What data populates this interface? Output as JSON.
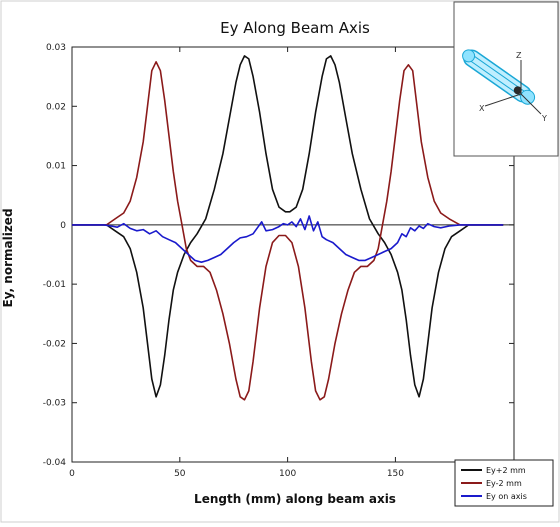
{
  "chart_data": {
    "type": "line",
    "title": "Ey Along Beam Axis",
    "xlabel": "Length (mm) along beam axis",
    "ylabel": "Ey, normalized",
    "xlim": [
      0,
      205
    ],
    "ylim": [
      -0.04,
      0.03
    ],
    "x_ticks": [
      0,
      50,
      100,
      150
    ],
    "x_tick_labels": [
      "0",
      "50",
      "100",
      "150"
    ],
    "y_ticks": [
      0.03,
      0.02,
      0.01,
      0,
      -0.01,
      -0.02,
      -0.03,
      -0.04
    ],
    "y_tick_labels": [
      "0.03",
      "0.02",
      "0.01",
      "0",
      "-0.01",
      "-0.02",
      "-0.03",
      "-0.04"
    ],
    "zero_line": true,
    "grid": false,
    "legend_position": "bottom-right",
    "series": [
      {
        "name": "Ey+2 mm",
        "color": "#111111",
        "points": [
          [
            0,
            0
          ],
          [
            12,
            0
          ],
          [
            16,
            0
          ],
          [
            20,
            -0.001
          ],
          [
            24,
            -0.002
          ],
          [
            27,
            -0.004
          ],
          [
            30,
            -0.008
          ],
          [
            33,
            -0.014
          ],
          [
            35,
            -0.02
          ],
          [
            37,
            -0.026
          ],
          [
            39,
            -0.029
          ],
          [
            41,
            -0.027
          ],
          [
            43,
            -0.022
          ],
          [
            45,
            -0.016
          ],
          [
            47,
            -0.011
          ],
          [
            49,
            -0.008
          ],
          [
            52,
            -0.005
          ],
          [
            55,
            -0.003
          ],
          [
            58,
            -0.0015
          ],
          [
            62,
            0.001
          ],
          [
            66,
            0.006
          ],
          [
            70,
            0.012
          ],
          [
            73,
            0.018
          ],
          [
            76,
            0.024
          ],
          [
            78,
            0.027
          ],
          [
            80,
            0.0285
          ],
          [
            82,
            0.028
          ],
          [
            84,
            0.025
          ],
          [
            87,
            0.019
          ],
          [
            90,
            0.012
          ],
          [
            93,
            0.006
          ],
          [
            96,
            0.003
          ],
          [
            99,
            0.0022
          ],
          [
            101,
            0.0022
          ],
          [
            104,
            0.003
          ],
          [
            107,
            0.006
          ],
          [
            110,
            0.012
          ],
          [
            113,
            0.019
          ],
          [
            116,
            0.025
          ],
          [
            118,
            0.028
          ],
          [
            120,
            0.0285
          ],
          [
            122,
            0.027
          ],
          [
            124,
            0.024
          ],
          [
            127,
            0.018
          ],
          [
            130,
            0.012
          ],
          [
            134,
            0.006
          ],
          [
            138,
            0.001
          ],
          [
            142,
            -0.0015
          ],
          [
            145,
            -0.003
          ],
          [
            148,
            -0.005
          ],
          [
            151,
            -0.008
          ],
          [
            153,
            -0.011
          ],
          [
            155,
            -0.016
          ],
          [
            157,
            -0.022
          ],
          [
            159,
            -0.027
          ],
          [
            161,
            -0.029
          ],
          [
            163,
            -0.026
          ],
          [
            165,
            -0.02
          ],
          [
            167,
            -0.014
          ],
          [
            170,
            -0.008
          ],
          [
            173,
            -0.004
          ],
          [
            176,
            -0.002
          ],
          [
            180,
            -0.001
          ],
          [
            184,
            0
          ],
          [
            190,
            0
          ],
          [
            200,
            0
          ]
        ]
      },
      {
        "name": "Ey-2 mm",
        "color": "#8b1a1a",
        "points": [
          [
            0,
            0
          ],
          [
            12,
            0
          ],
          [
            16,
            0
          ],
          [
            20,
            0.001
          ],
          [
            24,
            0.002
          ],
          [
            27,
            0.004
          ],
          [
            30,
            0.008
          ],
          [
            33,
            0.014
          ],
          [
            35,
            0.02
          ],
          [
            37,
            0.026
          ],
          [
            39,
            0.0275
          ],
          [
            41,
            0.026
          ],
          [
            43,
            0.021
          ],
          [
            45,
            0.015
          ],
          [
            47,
            0.009
          ],
          [
            49,
            0.004
          ],
          [
            51,
            0
          ],
          [
            53,
            -0.004
          ],
          [
            55,
            -0.006
          ],
          [
            58,
            -0.007
          ],
          [
            61,
            -0.007
          ],
          [
            64,
            -0.008
          ],
          [
            67,
            -0.011
          ],
          [
            70,
            -0.015
          ],
          [
            73,
            -0.02
          ],
          [
            76,
            -0.026
          ],
          [
            78,
            -0.029
          ],
          [
            80,
            -0.0295
          ],
          [
            82,
            -0.028
          ],
          [
            84,
            -0.023
          ],
          [
            87,
            -0.014
          ],
          [
            90,
            -0.007
          ],
          [
            93,
            -0.003
          ],
          [
            96,
            -0.0018
          ],
          [
            99,
            -0.0018
          ],
          [
            102,
            -0.003
          ],
          [
            105,
            -0.007
          ],
          [
            108,
            -0.014
          ],
          [
            111,
            -0.023
          ],
          [
            113,
            -0.028
          ],
          [
            115,
            -0.0295
          ],
          [
            117,
            -0.029
          ],
          [
            119,
            -0.026
          ],
          [
            122,
            -0.02
          ],
          [
            125,
            -0.015
          ],
          [
            128,
            -0.011
          ],
          [
            131,
            -0.008
          ],
          [
            134,
            -0.007
          ],
          [
            137,
            -0.007
          ],
          [
            140,
            -0.006
          ],
          [
            142,
            -0.004
          ],
          [
            144,
            0
          ],
          [
            146,
            0.004
          ],
          [
            148,
            0.009
          ],
          [
            150,
            0.015
          ],
          [
            152,
            0.021
          ],
          [
            154,
            0.026
          ],
          [
            156,
            0.027
          ],
          [
            158,
            0.026
          ],
          [
            160,
            0.02
          ],
          [
            162,
            0.014
          ],
          [
            165,
            0.008
          ],
          [
            168,
            0.004
          ],
          [
            171,
            0.002
          ],
          [
            175,
            0.001
          ],
          [
            180,
            0
          ],
          [
            190,
            0
          ],
          [
            200,
            0
          ]
        ]
      },
      {
        "name": "Ey on axis",
        "color": "#1a1acc",
        "points": [
          [
            0,
            0
          ],
          [
            15,
            0
          ],
          [
            18,
            -0.0002
          ],
          [
            21,
            -0.0004
          ],
          [
            24,
            0.0002
          ],
          [
            27,
            -0.0006
          ],
          [
            30,
            -0.001
          ],
          [
            33,
            -0.0008
          ],
          [
            36,
            -0.0015
          ],
          [
            39,
            -0.001
          ],
          [
            42,
            -0.002
          ],
          [
            45,
            -0.0025
          ],
          [
            48,
            -0.003
          ],
          [
            51,
            -0.004
          ],
          [
            54,
            -0.005
          ],
          [
            57,
            -0.006
          ],
          [
            60,
            -0.0063
          ],
          [
            63,
            -0.006
          ],
          [
            66,
            -0.0055
          ],
          [
            69,
            -0.005
          ],
          [
            72,
            -0.004
          ],
          [
            75,
            -0.003
          ],
          [
            78,
            -0.0022
          ],
          [
            81,
            -0.002
          ],
          [
            84,
            -0.0015
          ],
          [
            86,
            -0.0005
          ],
          [
            88,
            0.0005
          ],
          [
            90,
            -0.001
          ],
          [
            93,
            -0.0008
          ],
          [
            96,
            -0.0003
          ],
          [
            98,
            0.0002
          ],
          [
            100,
            0
          ],
          [
            102,
            0.0005
          ],
          [
            104,
            -0.0003
          ],
          [
            106,
            0.001
          ],
          [
            108,
            -0.0008
          ],
          [
            110,
            0.0015
          ],
          [
            112,
            -0.001
          ],
          [
            114,
            0.0005
          ],
          [
            116,
            -0.002
          ],
          [
            118,
            -0.0025
          ],
          [
            121,
            -0.003
          ],
          [
            124,
            -0.004
          ],
          [
            127,
            -0.005
          ],
          [
            130,
            -0.0055
          ],
          [
            133,
            -0.006
          ],
          [
            136,
            -0.006
          ],
          [
            139,
            -0.0055
          ],
          [
            142,
            -0.005
          ],
          [
            145,
            -0.0045
          ],
          [
            148,
            -0.004
          ],
          [
            151,
            -0.003
          ],
          [
            153,
            -0.0015
          ],
          [
            155,
            -0.002
          ],
          [
            157,
            -0.0005
          ],
          [
            159,
            -0.001
          ],
          [
            161,
            -0.0002
          ],
          [
            163,
            -0.0006
          ],
          [
            165,
            0.0002
          ],
          [
            168,
            -0.0003
          ],
          [
            171,
            -0.0005
          ],
          [
            175,
            -0.0002
          ],
          [
            180,
            0
          ],
          [
            190,
            0
          ],
          [
            200,
            0
          ]
        ]
      }
    ],
    "inset": {
      "axis_labels": [
        "Z",
        "X",
        "Y"
      ]
    }
  }
}
